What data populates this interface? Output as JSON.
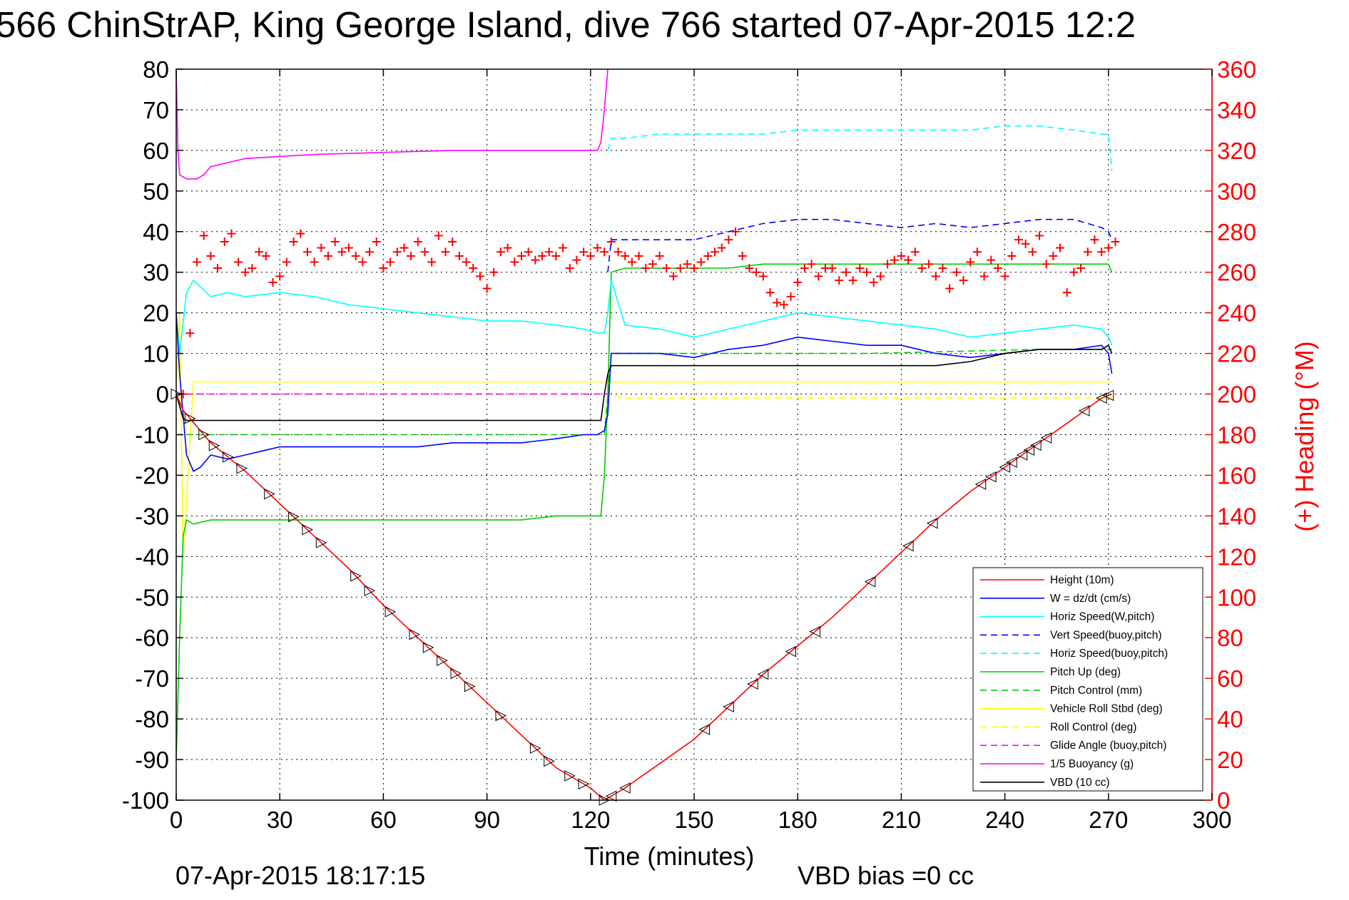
{
  "chart_data": {
    "type": "line",
    "title": "566 ChinStrAP, King George Island, dive 766 started 07-Apr-2015 12:2",
    "xlabel": "Time (minutes)",
    "ylabel": "",
    "y2label": "(+) Heading (°M)",
    "xlim": [
      0,
      300
    ],
    "ylim": [
      -100,
      80
    ],
    "y2lim": [
      0,
      360
    ],
    "xticks": [
      "0",
      "30",
      "60",
      "90",
      "120",
      "150",
      "180",
      "210",
      "240",
      "270",
      "300"
    ],
    "yticks": [
      "80",
      "70",
      "60",
      "50",
      "40",
      "30",
      "20",
      "10",
      "0",
      "-10",
      "-20",
      "-30",
      "-40",
      "-50",
      "-60",
      "-70",
      "-80",
      "-90",
      "-100"
    ],
    "y2ticks": [
      "360",
      "340",
      "320",
      "300",
      "280",
      "260",
      "240",
      "220",
      "200",
      "180",
      "160",
      "140",
      "120",
      "100",
      "80",
      "60",
      "40",
      "20",
      "0"
    ],
    "grid": true,
    "legend_position": "bottom-right",
    "footer_left": "07-Apr-2015 18:17:15",
    "footer_right": "VBD bias =0 cc",
    "series": [
      {
        "name": "Height (10m)",
        "color": "#ff0000",
        "dash": "solid",
        "x": [
          0,
          2,
          10,
          20,
          30,
          40,
          50,
          60,
          70,
          80,
          90,
          100,
          110,
          120,
          124,
          125,
          130,
          140,
          150,
          160,
          170,
          180,
          190,
          200,
          210,
          220,
          230,
          240,
          250,
          260,
          268,
          271
        ],
        "y": [
          0,
          -4,
          -12,
          -19,
          -27,
          -35,
          -43,
          -52,
          -60,
          -68,
          -76,
          -84,
          -92,
          -97,
          -100,
          -99.5,
          -97,
          -91,
          -85,
          -77,
          -69,
          -62,
          -55,
          -47,
          -39,
          -31,
          -24,
          -18,
          -12,
          -6,
          -1,
          0
        ]
      },
      {
        "name": "W = dz/dt (cm/s)",
        "color": "#0000ff",
        "dash": "solid",
        "x": [
          0,
          1,
          3,
          5,
          7,
          10,
          15,
          20,
          25,
          30,
          40,
          50,
          60,
          70,
          80,
          90,
          100,
          110,
          118,
          122,
          124,
          125,
          126,
          130,
          140,
          150,
          160,
          170,
          180,
          190,
          200,
          210,
          220,
          230,
          240,
          250,
          260,
          268,
          270,
          271
        ],
        "y": [
          20,
          5,
          -15,
          -19,
          -18,
          -15,
          -16,
          -15,
          -14,
          -13,
          -13,
          -13,
          -13,
          -13,
          -12,
          -12,
          -12,
          -11,
          -10,
          -10,
          -9,
          -5,
          10,
          10,
          10,
          9,
          11,
          12,
          14,
          13,
          12,
          12,
          10,
          9,
          10,
          11,
          11,
          12,
          10,
          5
        ]
      },
      {
        "name": "Horiz Speed(W,pitch)",
        "color": "#00ffff",
        "dash": "solid",
        "x": [
          0,
          1,
          3,
          5,
          10,
          15,
          20,
          30,
          40,
          50,
          60,
          70,
          80,
          90,
          100,
          110,
          118,
          122,
          124,
          125,
          126,
          130,
          140,
          150,
          160,
          170,
          180,
          190,
          200,
          210,
          220,
          230,
          240,
          250,
          260,
          268,
          270,
          271
        ],
        "y": [
          20,
          10,
          25,
          28,
          24,
          25,
          24,
          25,
          24,
          22,
          21,
          20,
          19,
          18,
          18,
          17,
          16,
          15,
          15,
          20,
          28,
          17,
          16,
          14,
          16,
          18,
          20,
          19,
          18,
          17,
          16,
          14,
          15,
          16,
          17,
          16,
          14,
          12
        ]
      },
      {
        "name": "Vert Speed(buoy,pitch)",
        "color": "#0000ff",
        "dash": "dashed",
        "x": [
          125,
          126,
          130,
          140,
          150,
          160,
          170,
          180,
          190,
          200,
          210,
          220,
          230,
          240,
          250,
          260,
          268,
          270,
          271
        ],
        "y": [
          30,
          38,
          38,
          38,
          38,
          40,
          42,
          43,
          43,
          42,
          41,
          42,
          41,
          42,
          43,
          43,
          41,
          40,
          38
        ]
      },
      {
        "name": "Horiz Speed(buoy,pitch)",
        "color": "#00ffff",
        "dash": "dashed",
        "x": [
          125,
          126,
          130,
          140,
          150,
          160,
          170,
          180,
          190,
          200,
          210,
          220,
          230,
          240,
          250,
          260,
          268,
          270,
          271
        ],
        "y": [
          60,
          63,
          63,
          64,
          64,
          64,
          64,
          65,
          65,
          65,
          65,
          65,
          65,
          66,
          66,
          65,
          64,
          64,
          55
        ]
      },
      {
        "name": "Pitch Up (deg)",
        "color": "#00cc00",
        "dash": "solid",
        "x": [
          0,
          1,
          2,
          3,
          5,
          10,
          20,
          30,
          40,
          50,
          60,
          70,
          80,
          90,
          100,
          110,
          120,
          123,
          124,
          125,
          126,
          130,
          140,
          150,
          160,
          170,
          180,
          190,
          200,
          210,
          220,
          230,
          240,
          250,
          260,
          268,
          270,
          271
        ],
        "y": [
          -90,
          -60,
          -35,
          -31,
          -32,
          -31,
          -31,
          -31,
          -31,
          -31,
          -31,
          -31,
          -31,
          -31,
          -31,
          -30,
          -30,
          -30,
          -20,
          0,
          30,
          31,
          31,
          31,
          31,
          32,
          32,
          32,
          32,
          32,
          32,
          32,
          32,
          32,
          32,
          32,
          32,
          30
        ]
      },
      {
        "name": "Pitch Control (mm)",
        "color": "#00cc00",
        "dash": "dashed",
        "x": [
          0,
          2,
          5,
          50,
          100,
          120,
          124,
          125,
          126,
          150,
          200,
          250,
          271
        ],
        "y": [
          -10,
          -10,
          -10,
          -10,
          -10,
          -10,
          -10,
          0,
          10,
          10,
          10,
          11,
          11
        ]
      },
      {
        "name": "Vehicle Roll Stbd (deg)",
        "color": "#ffff00",
        "dash": "solid",
        "x": [
          0,
          1,
          2,
          5,
          10,
          30,
          60,
          90,
          120,
          125,
          130,
          160,
          190,
          220,
          250,
          271
        ],
        "y": [
          2,
          20,
          -40,
          3,
          3,
          3,
          3,
          3,
          3,
          3,
          3,
          3,
          3,
          3,
          3,
          3
        ]
      },
      {
        "name": "Roll Control (deg)",
        "color": "#ffff00",
        "dash": "dashed",
        "x": [
          0,
          5,
          30,
          60,
          90,
          120,
          125,
          130,
          160,
          190,
          220,
          250,
          271
        ],
        "y": [
          0,
          0,
          0,
          0,
          0,
          0,
          0,
          -1,
          -1,
          -1,
          -1,
          -1,
          -1
        ]
      },
      {
        "name": "Glide Angle (buoy,pitch)",
        "color": "#ff00ff",
        "dash": "dashed",
        "x": [
          0,
          124,
          125
        ],
        "y": [
          0,
          0,
          0
        ]
      },
      {
        "name": "1/5 Buoyancy (g)",
        "color": "#ff00ff",
        "dash": "solid",
        "x": [
          0,
          0.5,
          1,
          3,
          6,
          8,
          10,
          15,
          20,
          30,
          40,
          60,
          80,
          100,
          118,
          122,
          123,
          124,
          125
        ],
        "y": [
          80,
          60,
          54,
          53,
          53,
          54,
          56,
          57,
          58,
          58.5,
          59,
          59.5,
          60,
          60,
          60,
          60,
          62,
          70,
          80
        ]
      },
      {
        "name": "VBD (10 cc)",
        "color": "#000000",
        "dash": "solid",
        "x": [
          0,
          1,
          2,
          3,
          5,
          10,
          50,
          100,
          122,
          123,
          124,
          125,
          126,
          140,
          150,
          170,
          200,
          220,
          230,
          240,
          250,
          260,
          268,
          270,
          271
        ],
        "y": [
          0,
          -3,
          -6,
          -6.5,
          -6.5,
          -6.5,
          -6.5,
          -6.5,
          -6.5,
          -6.5,
          0,
          5,
          7,
          7,
          7,
          7,
          7,
          7,
          8,
          10,
          11,
          11,
          11,
          12,
          10
        ]
      }
    ],
    "heading_series": {
      "name": "Heading",
      "color": "#ff0000",
      "marker": "+",
      "x": [
        2,
        4,
        6,
        8,
        10,
        12,
        14,
        16,
        18,
        20,
        22,
        24,
        26,
        28,
        30,
        32,
        34,
        36,
        38,
        40,
        42,
        44,
        46,
        48,
        50,
        52,
        54,
        56,
        58,
        60,
        62,
        64,
        66,
        68,
        70,
        72,
        74,
        76,
        78,
        80,
        82,
        84,
        86,
        88,
        90,
        92,
        94,
        96,
        98,
        100,
        102,
        104,
        106,
        108,
        110,
        112,
        114,
        116,
        118,
        120,
        122,
        124,
        126,
        128,
        130,
        132,
        134,
        136,
        138,
        140,
        142,
        144,
        146,
        148,
        150,
        152,
        154,
        156,
        158,
        160,
        162,
        164,
        166,
        168,
        170,
        172,
        174,
        176,
        178,
        180,
        182,
        184,
        186,
        188,
        190,
        192,
        194,
        196,
        198,
        200,
        202,
        204,
        206,
        208,
        210,
        212,
        214,
        216,
        218,
        220,
        222,
        224,
        226,
        228,
        230,
        232,
        234,
        236,
        238,
        240,
        242,
        244,
        246,
        248,
        250,
        252,
        254,
        256,
        258,
        260,
        262,
        264,
        266,
        268,
        270,
        272
      ],
      "y": [
        200,
        230,
        265,
        278,
        268,
        262,
        275,
        279,
        265,
        260,
        262,
        270,
        268,
        255,
        258,
        265,
        275,
        279,
        270,
        265,
        272,
        268,
        275,
        270,
        272,
        268,
        265,
        270,
        275,
        262,
        265,
        270,
        272,
        268,
        275,
        270,
        265,
        278,
        270,
        275,
        268,
        265,
        262,
        258,
        252,
        260,
        270,
        272,
        265,
        268,
        270,
        266,
        268,
        270,
        268,
        272,
        262,
        266,
        270,
        268,
        272,
        270,
        275,
        270,
        268,
        265,
        268,
        262,
        264,
        268,
        262,
        258,
        262,
        264,
        262,
        265,
        268,
        270,
        272,
        276,
        280,
        268,
        262,
        260,
        258,
        250,
        245,
        244,
        248,
        255,
        262,
        264,
        258,
        262,
        262,
        256,
        260,
        256,
        262,
        260,
        255,
        258,
        264,
        266,
        268,
        266,
        270,
        262,
        264,
        258,
        262,
        252,
        260,
        256,
        265,
        270,
        258,
        266,
        262,
        258,
        268,
        276,
        274,
        270,
        278,
        264,
        268,
        272,
        250,
        260,
        262,
        270,
        276,
        270,
        272,
        275
      ]
    }
  }
}
